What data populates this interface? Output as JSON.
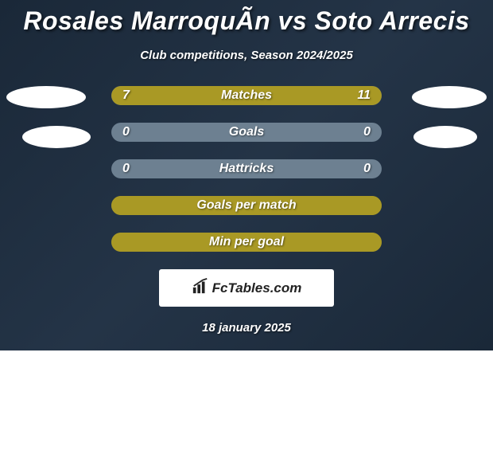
{
  "title": "Rosales MarroquÃ­n vs Soto Arrecis",
  "subtitle": "Club competitions, Season 2024/2025",
  "footer_date": "18 january 2025",
  "branding": {
    "label": "FcTables.com"
  },
  "colors": {
    "bar_fill": "#a99925",
    "bar_empty": "#6d8091",
    "ellipse": "#ffffff",
    "background_gradient_start": "#1a2838",
    "background_gradient_mid": "#243447",
    "text": "#ffffff",
    "text_shadow": "rgba(0,0,0,0.6)"
  },
  "stats": [
    {
      "label": "Matches",
      "left_val": "7",
      "right_val": "11",
      "left_pct": 39,
      "right_pct": 61,
      "show_values": true
    },
    {
      "label": "Goals",
      "left_val": "0",
      "right_val": "0",
      "left_pct": 0,
      "right_pct": 0,
      "show_values": true
    },
    {
      "label": "Hattricks",
      "left_val": "0",
      "right_val": "0",
      "left_pct": 0,
      "right_pct": 0,
      "show_values": true
    },
    {
      "label": "Goals per match",
      "left_val": "",
      "right_val": "",
      "left_pct": 100,
      "right_pct": 0,
      "show_values": false
    },
    {
      "label": "Min per goal",
      "left_val": "",
      "right_val": "",
      "left_pct": 100,
      "right_pct": 0,
      "show_values": false
    }
  ]
}
